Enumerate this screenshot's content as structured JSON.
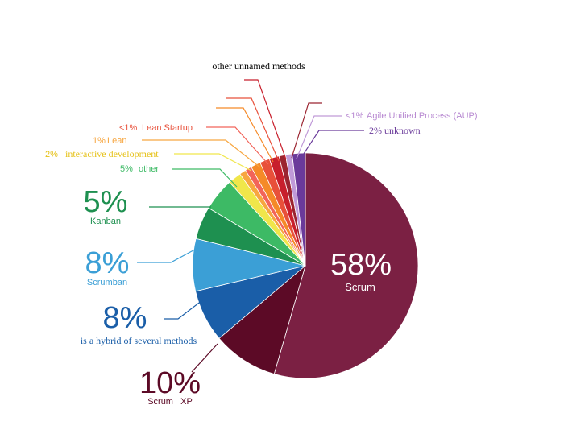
{
  "chart_data": {
    "type": "pie",
    "title": "",
    "slices": [
      {
        "name": "Scrum",
        "value": 58,
        "value_label": "58%",
        "color": "#7b2043"
      },
      {
        "name": "Scrum   XP",
        "value": 10,
        "value_label": "10%",
        "color": "#5c0a26"
      },
      {
        "name": "is a hybrid of several methods",
        "value": 8,
        "value_label": "8%",
        "color": "#1a5ea8"
      },
      {
        "name": "Scrumban",
        "value": 8,
        "value_label": "8%",
        "color": "#3b9fd6"
      },
      {
        "name": "Kanban",
        "value": 5,
        "value_label": "5%",
        "color": "#1e9050"
      },
      {
        "name": "other",
        "value": 5,
        "value_label": "5%",
        "color": "#3dba65"
      },
      {
        "name": "interactive development",
        "value": 2,
        "value_label": "2%",
        "color": "#f0e64a"
      },
      {
        "name": "Lean",
        "value": 1,
        "value_label": "1%",
        "color": "#f7a640"
      },
      {
        "name": "Lean Startup",
        "value": 1,
        "value_label": "<1%",
        "color": "#f2645a"
      },
      {
        "name": "",
        "value": 1.5,
        "value_label": "",
        "color": "#f58a28"
      },
      {
        "name": "",
        "value": 1.5,
        "value_label": "",
        "color": "#e8503a"
      },
      {
        "name": "other unnamed methods",
        "value": 1.5,
        "value_label": "",
        "color": "#c81f2c"
      },
      {
        "name": "",
        "value": 1,
        "value_label": "",
        "color": "#9b2430"
      },
      {
        "name": "Agile Unified Process (AUP)",
        "value": 1,
        "value_label": "<1%",
        "color": "#c09ad8"
      },
      {
        "name": "unknown",
        "value": 2,
        "value_label": "2%",
        "color": "#6a3a9a"
      }
    ],
    "legend": "none"
  }
}
